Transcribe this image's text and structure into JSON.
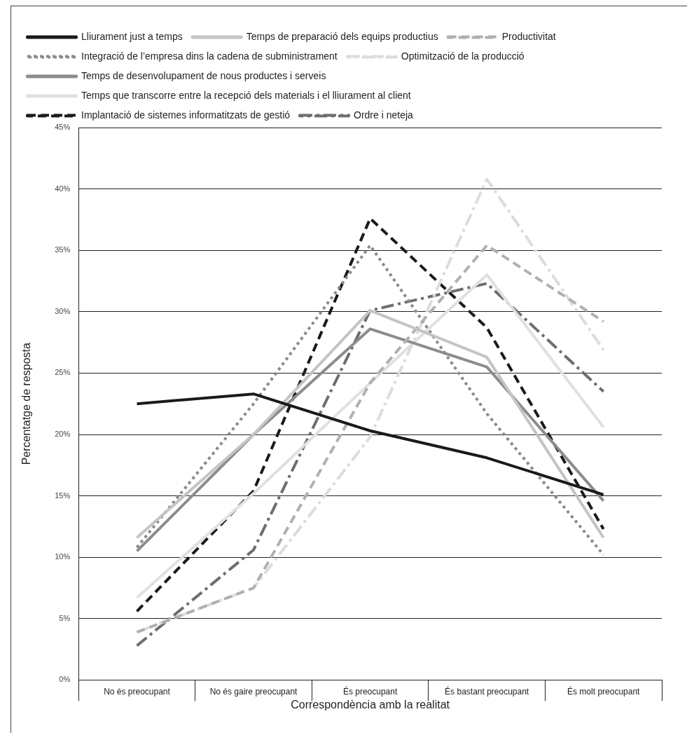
{
  "chart_data": {
    "type": "line",
    "xlabel": "Correspondència amb la realitat",
    "ylabel": "Percentatge de resposta",
    "categories": [
      "No és preocupant",
      "No és gaire preocupant",
      "És preocupant",
      "És bastant preocupant",
      "És molt preocupant"
    ],
    "ylim": [
      0,
      45
    ],
    "yticks": [
      {
        "value": 0,
        "label": "0%"
      },
      {
        "value": 5,
        "label": "5%"
      },
      {
        "value": 10,
        "label": "10%"
      },
      {
        "value": 15,
        "label": "15%"
      },
      {
        "value": 20,
        "label": "20%"
      },
      {
        "value": 25,
        "label": "25%"
      },
      {
        "value": 30,
        "label": "30%"
      },
      {
        "value": 35,
        "label": "35%"
      },
      {
        "value": 40,
        "label": "40%"
      },
      {
        "value": 45,
        "label": "45%"
      }
    ],
    "grid": "y",
    "legend": "top",
    "marker": "none",
    "series": [
      {
        "name": "Lliurament just a temps",
        "color": "#1a1a1a",
        "line_style": "solid",
        "values": [
          22.5,
          23.3,
          20.3,
          18.1,
          15.1
        ]
      },
      {
        "name": "Temps de preparació dels equips productius",
        "color": "#c4c4c4",
        "line_style": "solid",
        "values": [
          11.6,
          20,
          30.1,
          26.3,
          11.6
        ]
      },
      {
        "name": "Productivitat",
        "color": "#b0b0b0",
        "line_style": "dashed",
        "values": [
          3.9,
          7.5,
          24.2,
          35.4,
          29.2
        ]
      },
      {
        "name": "Integració de l’empresa dins la cadena de subministrament",
        "color": "#8a8a8a",
        "line_style": "dotted",
        "values": [
          10.8,
          22.5,
          35.4,
          21.7,
          10.2
        ]
      },
      {
        "name": "Optimització de la producció",
        "color": "#dcdcdc",
        "line_style": "dashdot",
        "values": [
          3.9,
          7.5,
          19.8,
          40.8,
          26.9
        ]
      },
      {
        "name": "Temps de desenvolupament de nous productes i serveis",
        "color": "#8c8c8c",
        "line_style": "solid",
        "values": [
          10.5,
          20,
          28.6,
          25.5,
          14.6
        ]
      },
      {
        "name": "Temps que transcorre entre la recepció dels materials i el lliurament al client",
        "color": "#e0e0e0",
        "line_style": "solid",
        "values": [
          6.7,
          15.2,
          24.2,
          33,
          20.6
        ]
      },
      {
        "name": "Implantació de sistemes informatitzats de gestió",
        "color": "#1a1a1a",
        "line_style": "dashed",
        "values": [
          5.6,
          15.4,
          37.6,
          28.7,
          12.3
        ]
      },
      {
        "name": "Ordre i neteja",
        "color": "#6e6e6e",
        "line_style": "dashdot",
        "values": [
          2.8,
          10.6,
          30.1,
          32.3,
          23.5
        ]
      }
    ]
  }
}
